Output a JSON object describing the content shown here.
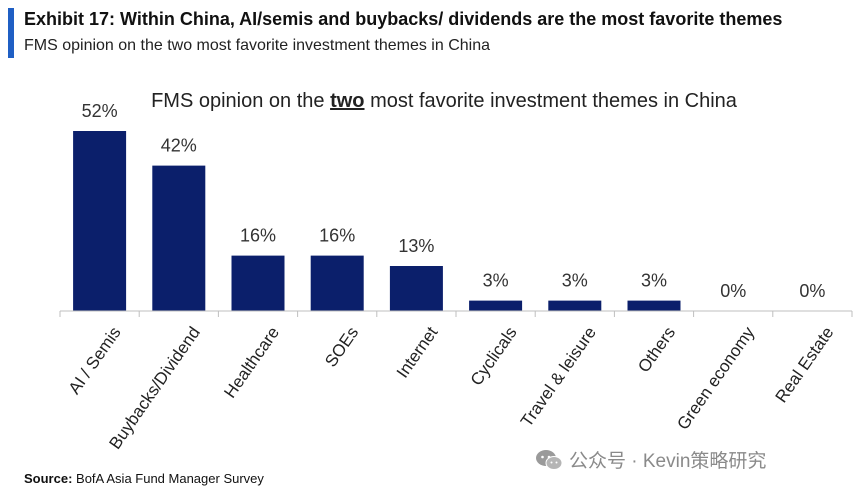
{
  "header": {
    "exhibit_title": "Exhibit 17: Within China, AI/semis and buybacks/ dividends are the most favorite themes",
    "exhibit_subtitle": "FMS opinion on the two most favorite investment themes in China"
  },
  "chart_data": {
    "type": "bar",
    "title_parts": [
      "FMS opinion on the ",
      "two",
      " most favorite investment themes in China"
    ],
    "categories": [
      "AI / Semis",
      "Buybacks/Dividend",
      "Healthcare",
      "SOEs",
      "Internet",
      "Cyclicals",
      "Travel & leisure",
      "Others",
      "Green economy",
      "Real Estate"
    ],
    "values": [
      52,
      42,
      16,
      16,
      13,
      3,
      3,
      3,
      0,
      0
    ],
    "data_labels": [
      "52%",
      "42%",
      "16%",
      "16%",
      "13%",
      "3%",
      "3%",
      "3%",
      "0%",
      "0%"
    ],
    "ylim": [
      0,
      52
    ],
    "bar_color": "#0b1f6b",
    "grid": false,
    "legend": "none"
  },
  "footer": {
    "source_label": "Source:",
    "source_text": " BofA Asia Fund Manager Survey",
    "watermark": "公众号 · Kevin策略研究"
  }
}
